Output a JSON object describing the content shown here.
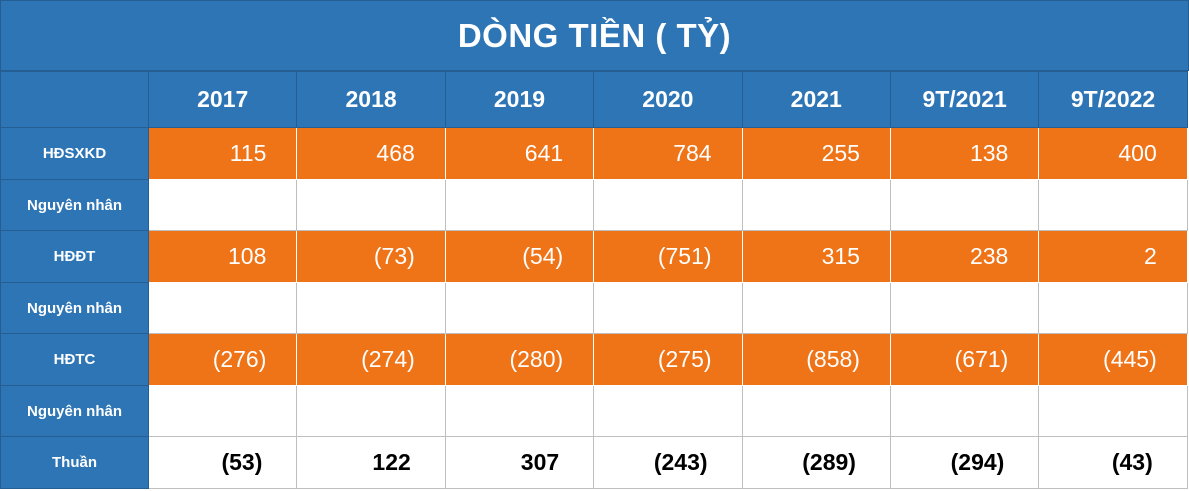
{
  "title": "DÒNG TIỀN ( TỶ)",
  "columns": [
    "2017",
    "2018",
    "2019",
    "2020",
    "2021",
    "9T/2021",
    "9T/2022"
  ],
  "rows": {
    "hdsxkd": {
      "label": "HĐSXKD",
      "values": [
        "115",
        "468",
        "641",
        "784",
        "255",
        "138",
        "400"
      ]
    },
    "cause1": {
      "label": "Nguyên nhân"
    },
    "hddt": {
      "label": "HĐĐT",
      "values": [
        "108",
        "(73)",
        "(54)",
        "(751)",
        "315",
        "238",
        "2"
      ]
    },
    "cause2": {
      "label": "Nguyên nhân"
    },
    "hdtc": {
      "label": "HĐTC",
      "values": [
        "(276)",
        "(274)",
        "(280)",
        "(275)",
        "(858)",
        "(671)",
        "(445)"
      ]
    },
    "cause3": {
      "label": "Nguyên nhân"
    },
    "net": {
      "label": "Thuần",
      "values": [
        "(53)",
        "122",
        "307",
        "(243)",
        "(289)",
        "(294)",
        "(43)"
      ]
    }
  },
  "colors": {
    "header_blue": "#2e75b6",
    "row_orange": "#ef7418",
    "text_white": "#ffffff"
  }
}
